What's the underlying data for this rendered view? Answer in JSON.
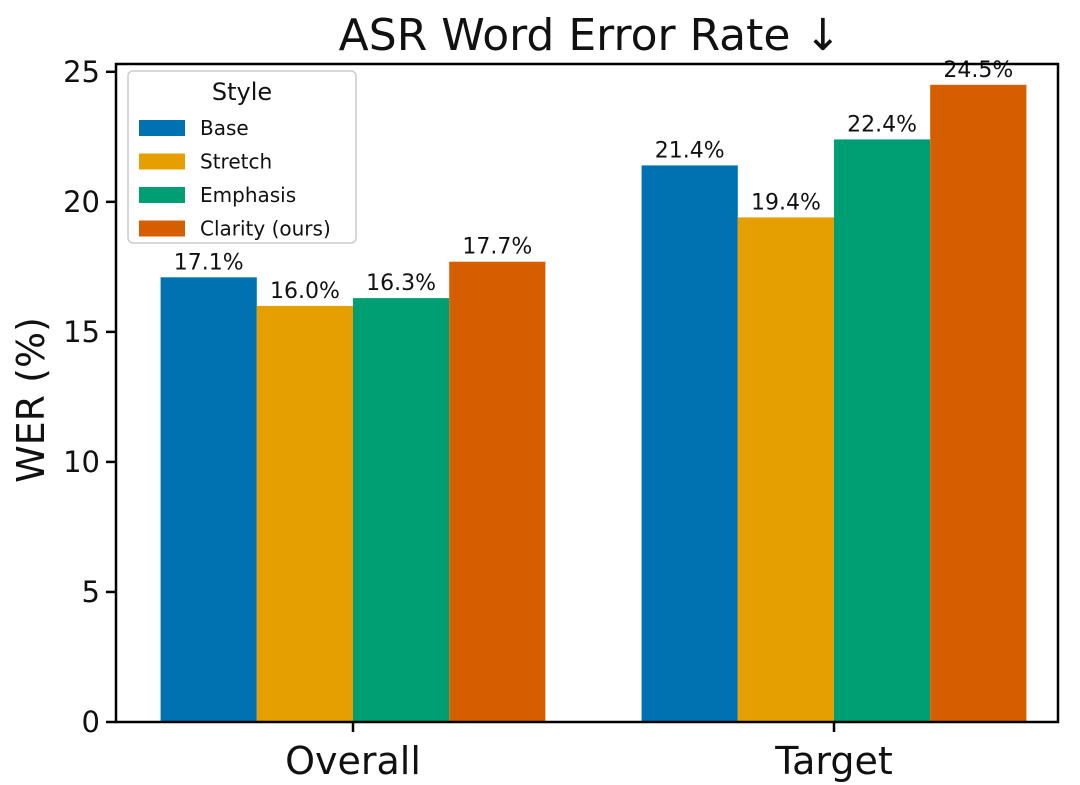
{
  "chart_data": {
    "type": "bar",
    "title": "ASR Word Error Rate ↓",
    "xlabel": "",
    "ylabel": "WER (%)",
    "categories": [
      "Overall",
      "Target"
    ],
    "ylim": [
      0,
      25.3
    ],
    "yticks": [
      0,
      5,
      10,
      15,
      20,
      25
    ],
    "grid": false,
    "legend": {
      "title": "Style",
      "placement": "top-left"
    },
    "series": [
      {
        "name": "Base",
        "color": "#0072b2",
        "values": [
          17.1,
          21.4
        ],
        "labels": [
          "17.1%",
          "21.4%"
        ]
      },
      {
        "name": "Stretch",
        "color": "#e69f00",
        "values": [
          16.0,
          19.4
        ],
        "labels": [
          "16.0%",
          "19.4%"
        ]
      },
      {
        "name": "Emphasis",
        "color": "#009e73",
        "values": [
          16.3,
          22.4
        ],
        "labels": [
          "16.3%",
          "22.4%"
        ]
      },
      {
        "name": "Clarity (ours)",
        "color": "#d55e00",
        "values": [
          17.7,
          24.5
        ],
        "labels": [
          "17.7%",
          "24.5%"
        ]
      }
    ]
  }
}
